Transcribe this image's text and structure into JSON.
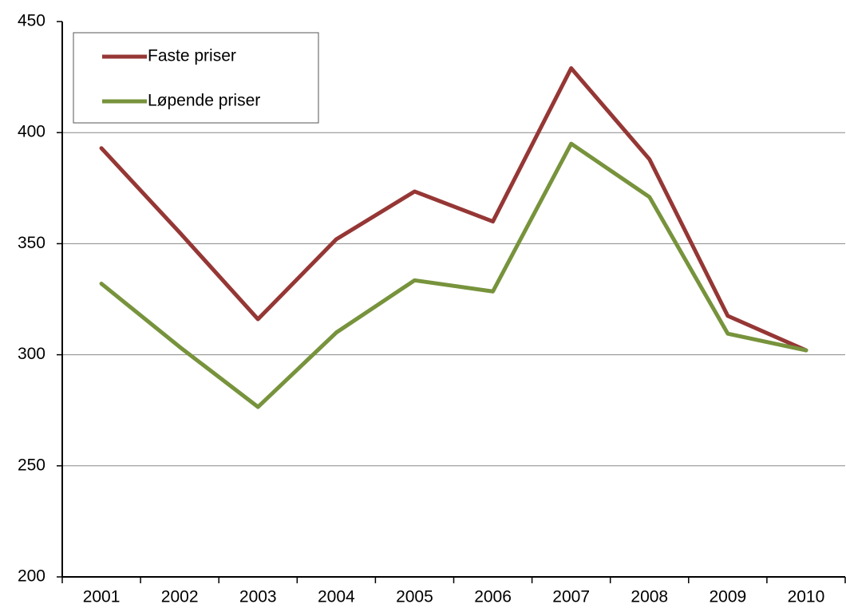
{
  "chart_data": {
    "type": "line",
    "categories": [
      "2001",
      "2002",
      "2003",
      "2004",
      "2005",
      "2006",
      "2007",
      "2008",
      "2009",
      "2010"
    ],
    "series": [
      {
        "name": "Faste priser",
        "color": "#953735",
        "values": [
          393,
          355,
          316,
          352,
          373.5,
          360,
          429,
          388,
          317.5,
          302
        ]
      },
      {
        "name": "Løpende priser",
        "color": "#77933c",
        "values": [
          332,
          303.5,
          276.5,
          310,
          333.5,
          328.5,
          395,
          371,
          309.5,
          302
        ]
      }
    ],
    "ylim": [
      200,
      450
    ],
    "yticks": [
      200,
      250,
      300,
      350,
      400,
      450
    ],
    "grid": true,
    "legend": "upper left"
  }
}
